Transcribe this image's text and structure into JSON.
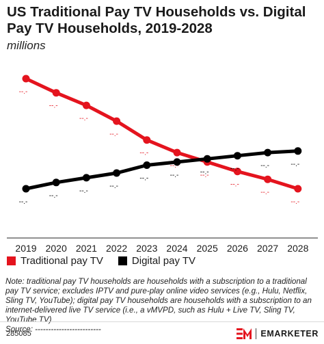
{
  "header": {
    "title": "US Traditional Pay TV Households vs. Digital Pay TV Households, 2019-2028",
    "subtitle": "millions"
  },
  "chart_data": {
    "type": "line",
    "title": "US Traditional Pay TV Households vs. Digital Pay TV Households, 2019-2028",
    "subtitle": "millions",
    "x": [
      "2019",
      "2020",
      "2021",
      "2022",
      "2023",
      "2024",
      "2025",
      "2026",
      "2027",
      "2028"
    ],
    "series": [
      {
        "name": "Traditional pay TV",
        "color": "#e4141e",
        "values": [
          100,
          91,
          83,
          73,
          61,
          53,
          47,
          41,
          36,
          30
        ],
        "data_labels": [
          "--.-",
          "--.-",
          "--.-",
          "--.-",
          "--.-",
          "--.-",
          "--.-",
          "--.-",
          "--.-",
          "--.-"
        ]
      },
      {
        "name": "Digital pay TV",
        "color": "#000000",
        "values": [
          30,
          34,
          37,
          40,
          45,
          47,
          49,
          51,
          53,
          54
        ],
        "data_labels": [
          "--.-",
          "--.-",
          "--.-",
          "--.-",
          "--.-",
          "--.-",
          "--.-",
          "--.-",
          "--.-",
          "--.-"
        ]
      }
    ],
    "ylim": [
      0,
      110
    ],
    "grid": false,
    "legend": "bottom-left"
  },
  "note": {
    "text": "Note: traditional pay TV households are households with a subscription to a traditional pay TV service; excludes IPTV and pure-play online video services (e.g., Hulu, Netflix, Sling TV, YouTube); digital pay TV households are households with a subscription to an internet-delivered live TV service (i.e., a vMVPD, such as Hulu + Live TV, Sling TV, YouTube TV)",
    "source": "Source: -------------------------"
  },
  "footer": {
    "chart_id": "285085",
    "brand": "EMARKETER"
  },
  "colors": {
    "traditional": "#e4141e",
    "digital": "#000000"
  }
}
